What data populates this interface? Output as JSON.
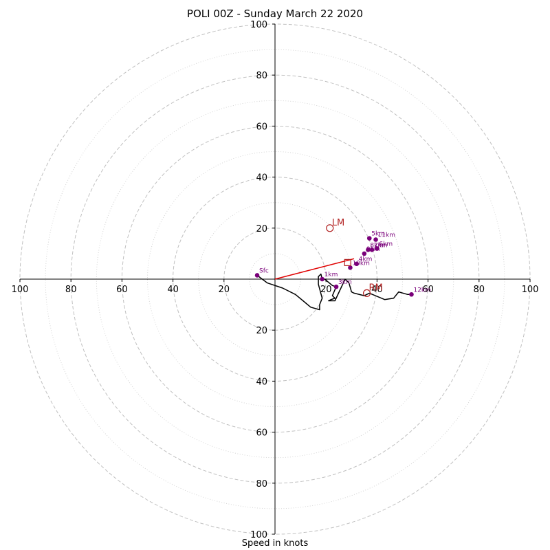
{
  "chart_data": {
    "type": "hodograph",
    "title": "POLI 00Z - Sunday March 22 2020",
    "xlabel": "Speed in knots",
    "speed_max": 100,
    "ring_major": [
      20,
      40,
      60,
      80,
      100
    ],
    "ring_minor": [
      10,
      30,
      50,
      70,
      90
    ],
    "tick_labels": {
      "left": [
        "100",
        "80",
        "60",
        "40",
        "20"
      ],
      "right": [
        "20",
        "40",
        "60",
        "80",
        "100"
      ],
      "top": [
        "20",
        "40",
        "60",
        "80",
        "100"
      ],
      "bottom": [
        "20",
        "40",
        "60",
        "80",
        "100"
      ]
    },
    "profile": [
      [
        -7,
        -1.5
      ],
      [
        -3,
        1.5
      ],
      [
        3,
        3.5
      ],
      [
        8,
        6
      ],
      [
        11,
        8.5
      ],
      [
        14,
        11
      ],
      [
        17.5,
        12
      ],
      [
        17.5,
        10
      ],
      [
        18.5,
        7.5
      ],
      [
        17,
        2
      ],
      [
        17,
        -1
      ],
      [
        18,
        -2
      ],
      [
        18.5,
        0
      ],
      [
        19.5,
        0
      ],
      [
        22.5,
        2.5
      ],
      [
        24,
        3
      ],
      [
        22.5,
        6.5
      ],
      [
        23.5,
        7.5
      ],
      [
        22,
        8
      ],
      [
        21,
        8.5
      ],
      [
        23.5,
        8.5
      ],
      [
        27.5,
        0
      ],
      [
        29,
        1.5
      ],
      [
        30,
        5
      ],
      [
        31,
        5.5
      ],
      [
        35,
        6.5
      ],
      [
        37,
        5.5
      ],
      [
        43,
        8
      ],
      [
        46.5,
        7.5
      ],
      [
        48.5,
        5
      ],
      [
        52,
        6
      ],
      [
        53.5,
        6
      ]
    ],
    "heights": [
      {
        "label": "Sfc",
        "u": -7,
        "v": -1.5
      },
      {
        "label": "1km",
        "u": 18.5,
        "v": 0
      },
      {
        "label": "3km",
        "u": 24,
        "v": 3
      },
      {
        "label": "4km",
        "u": 32,
        "v": -6
      },
      {
        "label": "5km",
        "u": 37,
        "v": -16
      },
      {
        "label": "6km",
        "u": 40,
        "v": -12
      },
      {
        "label": "7km",
        "u": 38,
        "v": -11.5
      },
      {
        "label": "8km",
        "u": 36.5,
        "v": -11.5
      },
      {
        "label": "9km",
        "u": 35,
        "v": -10
      },
      {
        "label": "10km",
        "u": 29.5,
        "v": -4.5
      },
      {
        "label": "11km",
        "u": 39.5,
        "v": -15.5
      },
      {
        "label": "12km",
        "u": 53.5,
        "v": 6
      }
    ],
    "storm_motion": [
      {
        "label": "LM",
        "u": 21.5,
        "v": -20
      },
      {
        "label": "RM",
        "u": 36,
        "v": 5.5
      }
    ],
    "mean_wind_marker": {
      "label": "",
      "u": 28.5,
      "v": -6.5
    },
    "shear_vector": {
      "from": [
        0,
        0
      ],
      "to": [
        31,
        -8
      ]
    },
    "colors": {
      "ring": "#c0c0c0",
      "axis": "#000000",
      "profile": "#000000",
      "height_marker": "#7a007a",
      "storm_marker": "#b22222",
      "shear": "#e00000"
    }
  }
}
